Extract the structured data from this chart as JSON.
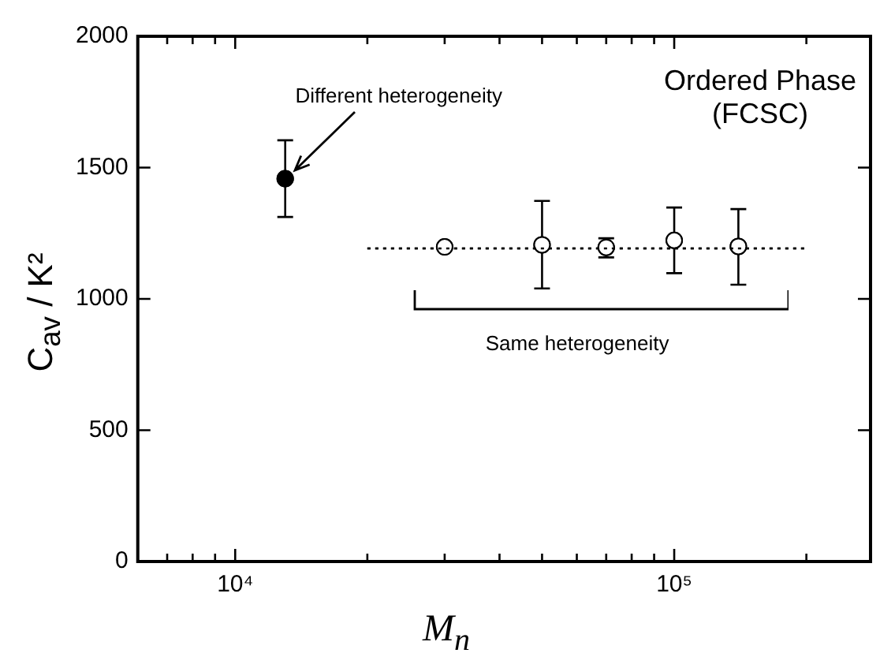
{
  "chart_data": {
    "type": "scatter",
    "title": "Ordered Phase (FCSC)",
    "xlabel": "M$_{n}$",
    "ylabel": "C$_{av}$ / K²",
    "log": "x",
    "xlim": [
      6000,
      280000
    ],
    "ylim": [
      0,
      2000
    ],
    "xticks": [
      {
        "value": 7000,
        "label": null
      },
      {
        "value": 8000,
        "label": null
      },
      {
        "value": 9000,
        "label": null
      },
      {
        "value": 10000,
        "label": "10⁴"
      },
      {
        "value": 20000,
        "label": null
      },
      {
        "value": 30000,
        "label": null
      },
      {
        "value": 40000,
        "label": null
      },
      {
        "value": 50000,
        "label": null
      },
      {
        "value": 60000,
        "label": null
      },
      {
        "value": 70000,
        "label": null
      },
      {
        "value": 80000,
        "label": null
      },
      {
        "value": 90000,
        "label": null
      },
      {
        "value": 100000,
        "label": "10⁵"
      },
      {
        "value": 200000,
        "label": null
      }
    ],
    "yticks": [
      0,
      500,
      1000,
      1500,
      2000
    ],
    "series": [
      {
        "type": "scatter",
        "color": "#000000",
        "marker": "circle",
        "x": [
          13000
        ],
        "values": [
          1458
        ],
        "errors": [
          [
            1312,
            1604
          ]
        ]
      },
      {
        "type": "scatter",
        "color": "#ffffff",
        "marker": "circle",
        "x": [
          30000,
          50000,
          70000,
          100000,
          140000
        ],
        "values": [
          1198,
          1206,
          1196,
          1223,
          1200
        ],
        "errors": [
          null,
          [
            1040,
            1373
          ],
          [
            1158,
            1231
          ],
          [
            1098,
            1348
          ],
          [
            1054,
            1342
          ]
        ]
      },
      {
        "type": "line",
        "color": "#000000",
        "marker": "none",
        "line_style": "dotted",
        "x": [
          20000,
          200000
        ],
        "values": [
          1192,
          1192
        ]
      }
    ],
    "annotations": [
      {
        "text": "Different heterogeneity",
        "x": 13000,
        "y": 1458
      },
      "Same heterogeneity"
    ]
  }
}
